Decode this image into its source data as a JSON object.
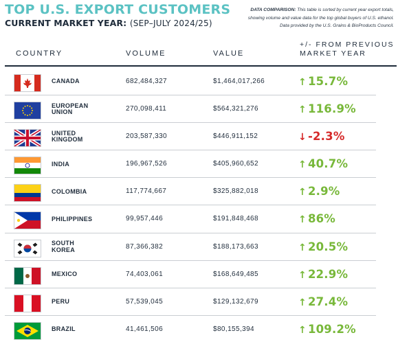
{
  "header": {
    "title": "TOP U.S. EXPORT CUSTOMERS",
    "subtitle_label": "CURRENT MARKET YEAR:",
    "subtitle_value": "(SEP–JULY 2024/25)",
    "note_label": "DATA COMPARISON:",
    "note_line1": "This table is sorted by current year export totals,",
    "note_line2": "showing volume and value data for the top global buyers of U.S. ethanol.",
    "note_line3": "Data provided by the U.S. Grains & BioProducts Council."
  },
  "columns": {
    "country": "COUNTRY",
    "volume": "VOLUME",
    "value": "VALUE",
    "change_line1": "+/- FROM PREVIOUS",
    "change_line2": "MARKET YEAR"
  },
  "colors": {
    "accent": "#5bc2c3",
    "up": "#78b83a",
    "down": "#d62a2a",
    "text": "#1e2b3a"
  },
  "rows": [
    {
      "flag": "canada-flag",
      "country_line1": "CANADA",
      "country_line2": "",
      "volume": "682,484,327",
      "value": "$1,464,017,266",
      "direction": "up",
      "arrow": "↑",
      "change": "15.7%"
    },
    {
      "flag": "eu-flag",
      "country_line1": "EUROPEAN",
      "country_line2": "UNION",
      "volume": "270,098,411",
      "value": "$564,321,276",
      "direction": "up",
      "arrow": "↑",
      "change": "116.9%"
    },
    {
      "flag": "uk-flag",
      "country_line1": "UNITED",
      "country_line2": "KINGDOM",
      "volume": "203,587,330",
      "value": "$446,911,152",
      "direction": "down",
      "arrow": "↓",
      "change": "-2.3%"
    },
    {
      "flag": "india-flag",
      "country_line1": "INDIA",
      "country_line2": "",
      "volume": "196,967,526",
      "value": "$405,960,652",
      "direction": "up",
      "arrow": "↑",
      "change": "40.7%"
    },
    {
      "flag": "colombia-flag",
      "country_line1": "COLOMBIA",
      "country_line2": "",
      "volume": "117,774,667",
      "value": "$325,882,018",
      "direction": "up",
      "arrow": "↑",
      "change": "2.9%"
    },
    {
      "flag": "philippines-flag",
      "country_line1": "PHILIPPINES",
      "country_line2": "",
      "volume": "99,957,446",
      "value": "$191,848,468",
      "direction": "up",
      "arrow": "↑",
      "change": "86%"
    },
    {
      "flag": "south-korea-flag",
      "country_line1": "SOUTH",
      "country_line2": "KOREA",
      "volume": "87,366,382",
      "value": "$188,173,663",
      "direction": "up",
      "arrow": "↑",
      "change": "20.5%"
    },
    {
      "flag": "mexico-flag",
      "country_line1": "MEXICO",
      "country_line2": "",
      "volume": "74,403,061",
      "value": "$168,649,485",
      "direction": "up",
      "arrow": "↑",
      "change": "22.9%"
    },
    {
      "flag": "peru-flag",
      "country_line1": "PERU",
      "country_line2": "",
      "volume": "57,539,045",
      "value": "$129,132,679",
      "direction": "up",
      "arrow": "↑",
      "change": "27.4%"
    },
    {
      "flag": "brazil-flag",
      "country_line1": "BRAZIL",
      "country_line2": "",
      "volume": "41,461,506",
      "value": "$80,155,394",
      "direction": "up",
      "arrow": "↑",
      "change": "109.2%"
    }
  ]
}
